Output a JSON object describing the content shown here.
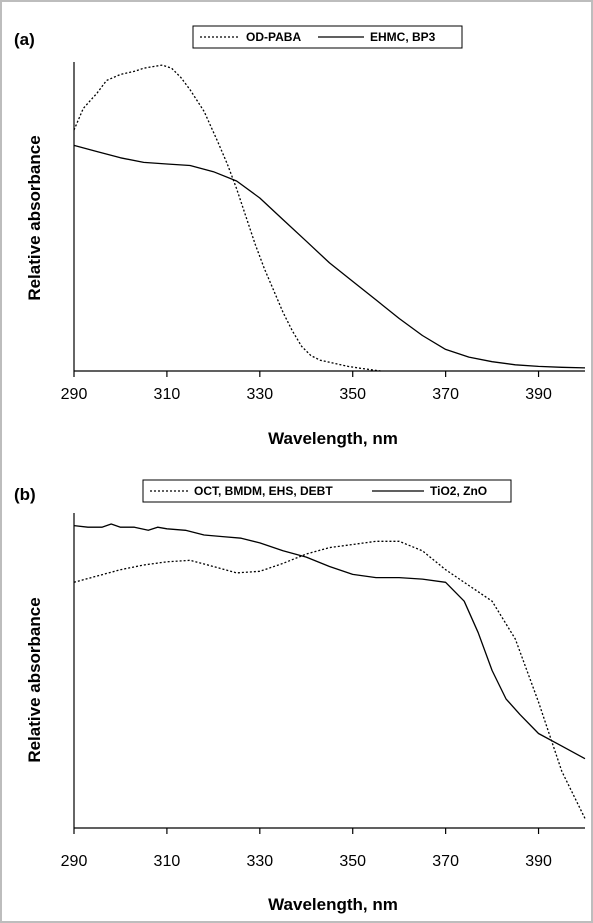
{
  "chart_data": [
    {
      "type": "line",
      "panel_label": "(a)",
      "xlabel": "Wavelength, nm",
      "ylabel": "Relative absorbance",
      "xlim": [
        290,
        400
      ],
      "ylim": [
        0,
        1
      ],
      "x_ticks": [
        290,
        310,
        330,
        350,
        370,
        390
      ],
      "grid": false,
      "legend": "top-center",
      "series": [
        {
          "name": "OD-PABA",
          "style": "dotted",
          "x": [
            290,
            292,
            295,
            297,
            300,
            303,
            305,
            307,
            309,
            311,
            313,
            315,
            318,
            321,
            323,
            325,
            327,
            329,
            331,
            333,
            335,
            337,
            339,
            341,
            343,
            346,
            349,
            352,
            356
          ],
          "y": [
            0.78,
            0.85,
            0.9,
            0.94,
            0.96,
            0.97,
            0.98,
            0.985,
            0.99,
            0.98,
            0.95,
            0.91,
            0.84,
            0.74,
            0.67,
            0.59,
            0.5,
            0.41,
            0.33,
            0.26,
            0.19,
            0.13,
            0.08,
            0.05,
            0.035,
            0.025,
            0.015,
            0.008,
            0.0
          ]
        },
        {
          "name": "EHMC, BP3",
          "style": "solid",
          "x": [
            290,
            295,
            300,
            305,
            310,
            315,
            320,
            325,
            330,
            335,
            340,
            345,
            350,
            355,
            360,
            365,
            370,
            375,
            380,
            385,
            390,
            395,
            400
          ],
          "y": [
            0.73,
            0.71,
            0.69,
            0.675,
            0.67,
            0.665,
            0.645,
            0.615,
            0.56,
            0.49,
            0.42,
            0.35,
            0.29,
            0.23,
            0.17,
            0.115,
            0.07,
            0.045,
            0.03,
            0.02,
            0.015,
            0.012,
            0.01
          ]
        }
      ]
    },
    {
      "type": "line",
      "panel_label": "(b)",
      "xlabel": "Wavelength, nm",
      "ylabel": "Relative absorbance",
      "xlim": [
        290,
        400
      ],
      "ylim": [
        0,
        1
      ],
      "x_ticks": [
        290,
        310,
        330,
        350,
        370,
        390
      ],
      "grid": false,
      "legend": "top-center",
      "series": [
        {
          "name": "OCT, BMDM, EHS, DEBT",
          "style": "dotted",
          "x": [
            290,
            295,
            300,
            305,
            310,
            315,
            320,
            325,
            330,
            335,
            340,
            345,
            350,
            355,
            360,
            365,
            370,
            375,
            380,
            385,
            390,
            395,
            400
          ],
          "y": [
            0.78,
            0.8,
            0.82,
            0.835,
            0.845,
            0.85,
            0.83,
            0.81,
            0.815,
            0.84,
            0.87,
            0.89,
            0.9,
            0.91,
            0.91,
            0.88,
            0.82,
            0.77,
            0.72,
            0.6,
            0.4,
            0.18,
            0.03
          ]
        },
        {
          "name": "TiO2, ZnO",
          "style": "solid",
          "x": [
            290,
            293,
            296,
            298,
            300,
            303,
            306,
            308,
            310,
            314,
            318,
            322,
            326,
            330,
            335,
            340,
            345,
            350,
            355,
            360,
            365,
            370,
            374,
            377,
            380,
            383,
            386,
            390,
            395,
            400
          ],
          "y": [
            0.96,
            0.955,
            0.955,
            0.965,
            0.955,
            0.955,
            0.945,
            0.955,
            0.95,
            0.945,
            0.93,
            0.925,
            0.92,
            0.905,
            0.88,
            0.86,
            0.83,
            0.805,
            0.795,
            0.795,
            0.79,
            0.78,
            0.72,
            0.62,
            0.5,
            0.41,
            0.36,
            0.3,
            0.26,
            0.22
          ]
        }
      ]
    }
  ]
}
